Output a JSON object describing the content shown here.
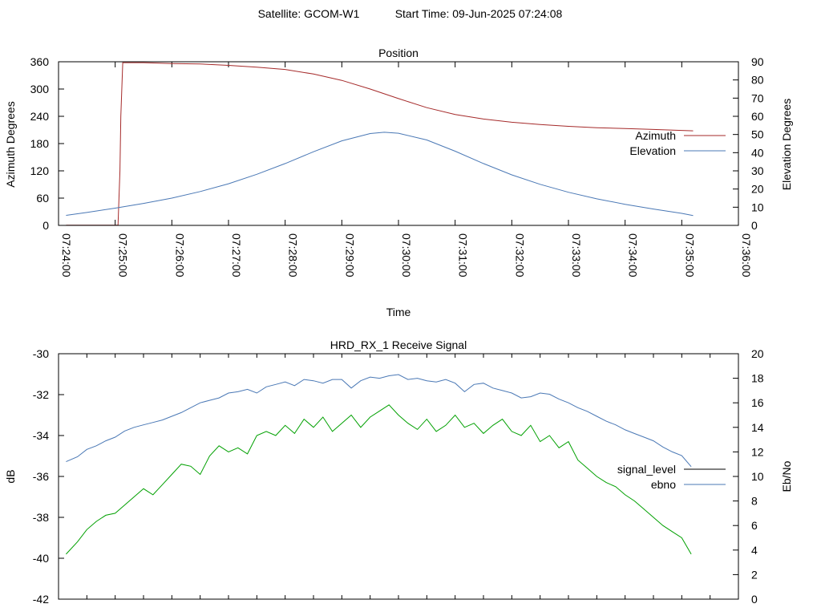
{
  "header": {
    "satellite_label": "Satellite: GCOM-W1",
    "start_time_label": "Start Time: 09-Jun-2025 07:24:08"
  },
  "chart_data": [
    {
      "type": "line",
      "title": "Position",
      "xlabel": "Time",
      "ylabel": "Azimuth Degrees",
      "y2label": "Elevation Degrees",
      "xlim": [
        "07:24:00",
        "07:36:00"
      ],
      "ylim": [
        0,
        360
      ],
      "y2lim": [
        0,
        90
      ],
      "x_ticks": [
        "07:24:00",
        "07:25:00",
        "07:26:00",
        "07:27:00",
        "07:28:00",
        "07:29:00",
        "07:30:00",
        "07:31:00",
        "07:32:00",
        "07:33:00",
        "07:34:00",
        "07:35:00",
        "07:36:00"
      ],
      "y_ticks": [
        0,
        60,
        120,
        180,
        240,
        300,
        360
      ],
      "y2_ticks": [
        0,
        10,
        20,
        30,
        40,
        50,
        60,
        70,
        80,
        90
      ],
      "grid": false,
      "legend": "right",
      "series": [
        {
          "name": "Azimuth",
          "axis": "y",
          "color": "#a52a2a",
          "points": [
            [
              "07:24:08",
              0.5
            ],
            [
              "07:24:30",
              0.5
            ],
            [
              "07:24:50",
              0.5
            ],
            [
              "07:25:03",
              0.5
            ],
            [
              "07:25:05",
              120
            ],
            [
              "07:25:06",
              240
            ],
            [
              "07:25:08",
              358
            ],
            [
              "07:25:30",
              358
            ],
            [
              "07:26:00",
              356
            ],
            [
              "07:26:30",
              355
            ],
            [
              "07:27:00",
              352
            ],
            [
              "07:27:30",
              348
            ],
            [
              "07:28:00",
              343
            ],
            [
              "07:28:30",
              333
            ],
            [
              "07:29:00",
              319
            ],
            [
              "07:29:30",
              300
            ],
            [
              "07:30:00",
              279
            ],
            [
              "07:30:30",
              259
            ],
            [
              "07:31:00",
              244
            ],
            [
              "07:31:30",
              234
            ],
            [
              "07:32:00",
              227
            ],
            [
              "07:32:30",
              222
            ],
            [
              "07:33:00",
              218
            ],
            [
              "07:33:30",
              215
            ],
            [
              "07:34:00",
              213
            ],
            [
              "07:34:30",
              211
            ],
            [
              "07:35:00",
              209
            ],
            [
              "07:35:12",
              208
            ]
          ]
        },
        {
          "name": "Elevation",
          "axis": "y2",
          "color": "#4a78b5",
          "points": [
            [
              "07:24:08",
              5.5
            ],
            [
              "07:24:30",
              7.1
            ],
            [
              "07:25:00",
              9.5
            ],
            [
              "07:25:30",
              12.1
            ],
            [
              "07:26:00",
              15.0
            ],
            [
              "07:26:30",
              18.6
            ],
            [
              "07:27:00",
              22.9
            ],
            [
              "07:27:30",
              28.1
            ],
            [
              "07:28:00",
              34.0
            ],
            [
              "07:28:30",
              40.5
            ],
            [
              "07:29:00",
              46.5
            ],
            [
              "07:29:30",
              50.5
            ],
            [
              "07:29:45",
              51.2
            ],
            [
              "07:30:00",
              50.7
            ],
            [
              "07:30:30",
              47.0
            ],
            [
              "07:31:00",
              40.8
            ],
            [
              "07:31:30",
              34.0
            ],
            [
              "07:32:00",
              27.8
            ],
            [
              "07:32:30",
              22.6
            ],
            [
              "07:33:00",
              18.2
            ],
            [
              "07:33:30",
              14.6
            ],
            [
              "07:34:00",
              11.6
            ],
            [
              "07:34:30",
              9.0
            ],
            [
              "07:35:00",
              6.6
            ],
            [
              "07:35:12",
              5.4
            ]
          ]
        }
      ]
    },
    {
      "type": "line",
      "title": "HRD_RX_1 Receive Signal",
      "xlabel": "",
      "ylabel": "dB",
      "y2label": "Eb/No",
      "xlim": [
        "07:24:00",
        "07:36:00"
      ],
      "ylim": [
        -42,
        -30
      ],
      "y2lim": [
        0,
        20
      ],
      "y_ticks": [
        -42,
        -40,
        -38,
        -36,
        -34,
        -32,
        -30
      ],
      "y2_ticks": [
        0,
        2,
        4,
        6,
        8,
        10,
        12,
        14,
        16,
        18,
        20
      ],
      "x_tick_labels_shown": false,
      "grid": false,
      "legend": "right",
      "series": [
        {
          "name": "signal_level",
          "axis": "y",
          "color": "#00a000",
          "legend_color": "#000000",
          "points": [
            [
              "07:24:08",
              -39.8
            ],
            [
              "07:24:20",
              -39.2
            ],
            [
              "07:24:30",
              -38.6
            ],
            [
              "07:24:40",
              -38.2
            ],
            [
              "07:24:50",
              -37.9
            ],
            [
              "07:25:00",
              -37.8
            ],
            [
              "07:25:10",
              -37.4
            ],
            [
              "07:25:20",
              -37.0
            ],
            [
              "07:25:30",
              -36.6
            ],
            [
              "07:25:40",
              -36.9
            ],
            [
              "07:25:50",
              -36.4
            ],
            [
              "07:26:00",
              -35.9
            ],
            [
              "07:26:10",
              -35.4
            ],
            [
              "07:26:20",
              -35.5
            ],
            [
              "07:26:30",
              -35.9
            ],
            [
              "07:26:40",
              -35.0
            ],
            [
              "07:26:50",
              -34.5
            ],
            [
              "07:27:00",
              -34.8
            ],
            [
              "07:27:10",
              -34.6
            ],
            [
              "07:27:20",
              -34.9
            ],
            [
              "07:27:30",
              -34.0
            ],
            [
              "07:27:40",
              -33.8
            ],
            [
              "07:27:50",
              -34.0
            ],
            [
              "07:28:00",
              -33.5
            ],
            [
              "07:28:10",
              -33.9
            ],
            [
              "07:28:20",
              -33.2
            ],
            [
              "07:28:30",
              -33.6
            ],
            [
              "07:28:40",
              -33.1
            ],
            [
              "07:28:50",
              -33.8
            ],
            [
              "07:29:00",
              -33.4
            ],
            [
              "07:29:10",
              -33.0
            ],
            [
              "07:29:20",
              -33.6
            ],
            [
              "07:29:30",
              -33.1
            ],
            [
              "07:29:40",
              -32.8
            ],
            [
              "07:29:50",
              -32.5
            ],
            [
              "07:30:00",
              -33.0
            ],
            [
              "07:30:10",
              -33.4
            ],
            [
              "07:30:20",
              -33.7
            ],
            [
              "07:30:30",
              -33.2
            ],
            [
              "07:30:40",
              -33.8
            ],
            [
              "07:30:50",
              -33.5
            ],
            [
              "07:31:00",
              -33.0
            ],
            [
              "07:31:10",
              -33.6
            ],
            [
              "07:31:20",
              -33.4
            ],
            [
              "07:31:30",
              -33.9
            ],
            [
              "07:31:40",
              -33.5
            ],
            [
              "07:31:50",
              -33.2
            ],
            [
              "07:32:00",
              -33.8
            ],
            [
              "07:32:10",
              -34.0
            ],
            [
              "07:32:20",
              -33.5
            ],
            [
              "07:32:30",
              -34.3
            ],
            [
              "07:32:40",
              -34.0
            ],
            [
              "07:32:50",
              -34.6
            ],
            [
              "07:33:00",
              -34.3
            ],
            [
              "07:33:10",
              -35.2
            ],
            [
              "07:33:20",
              -35.6
            ],
            [
              "07:33:30",
              -36.0
            ],
            [
              "07:33:40",
              -36.3
            ],
            [
              "07:33:50",
              -36.5
            ],
            [
              "07:34:00",
              -36.9
            ],
            [
              "07:34:10",
              -37.2
            ],
            [
              "07:34:20",
              -37.6
            ],
            [
              "07:34:30",
              -38.0
            ],
            [
              "07:34:40",
              -38.4
            ],
            [
              "07:34:50",
              -38.7
            ],
            [
              "07:35:00",
              -39.0
            ],
            [
              "07:35:10",
              -39.8
            ]
          ]
        },
        {
          "name": "ebno",
          "axis": "y2",
          "color": "#4a78b5",
          "points": [
            [
              "07:24:08",
              11.2
            ],
            [
              "07:24:20",
              11.6
            ],
            [
              "07:24:30",
              12.2
            ],
            [
              "07:24:40",
              12.5
            ],
            [
              "07:24:50",
              12.9
            ],
            [
              "07:25:00",
              13.2
            ],
            [
              "07:25:10",
              13.7
            ],
            [
              "07:25:20",
              14.0
            ],
            [
              "07:25:30",
              14.2
            ],
            [
              "07:25:40",
              14.4
            ],
            [
              "07:25:50",
              14.6
            ],
            [
              "07:26:00",
              14.9
            ],
            [
              "07:26:10",
              15.2
            ],
            [
              "07:26:20",
              15.6
            ],
            [
              "07:26:30",
              16.0
            ],
            [
              "07:26:40",
              16.2
            ],
            [
              "07:26:50",
              16.4
            ],
            [
              "07:27:00",
              16.8
            ],
            [
              "07:27:10",
              16.9
            ],
            [
              "07:27:20",
              17.1
            ],
            [
              "07:27:30",
              16.8
            ],
            [
              "07:27:40",
              17.3
            ],
            [
              "07:27:50",
              17.5
            ],
            [
              "07:28:00",
              17.7
            ],
            [
              "07:28:10",
              17.4
            ],
            [
              "07:28:20",
              17.9
            ],
            [
              "07:28:30",
              17.8
            ],
            [
              "07:28:40",
              17.6
            ],
            [
              "07:28:50",
              17.9
            ],
            [
              "07:29:00",
              17.9
            ],
            [
              "07:29:10",
              17.2
            ],
            [
              "07:29:20",
              17.8
            ],
            [
              "07:29:30",
              18.1
            ],
            [
              "07:29:40",
              18.0
            ],
            [
              "07:29:50",
              18.2
            ],
            [
              "07:30:00",
              18.3
            ],
            [
              "07:30:10",
              17.9
            ],
            [
              "07:30:20",
              18.0
            ],
            [
              "07:30:30",
              17.8
            ],
            [
              "07:30:40",
              17.7
            ],
            [
              "07:30:50",
              17.9
            ],
            [
              "07:31:00",
              17.6
            ],
            [
              "07:31:10",
              16.9
            ],
            [
              "07:31:20",
              17.5
            ],
            [
              "07:31:30",
              17.6
            ],
            [
              "07:31:40",
              17.2
            ],
            [
              "07:31:50",
              17.0
            ],
            [
              "07:32:00",
              16.8
            ],
            [
              "07:32:10",
              16.4
            ],
            [
              "07:32:20",
              16.5
            ],
            [
              "07:32:30",
              16.8
            ],
            [
              "07:32:40",
              16.7
            ],
            [
              "07:32:50",
              16.3
            ],
            [
              "07:33:00",
              16.0
            ],
            [
              "07:33:10",
              15.6
            ],
            [
              "07:33:20",
              15.3
            ],
            [
              "07:33:30",
              14.9
            ],
            [
              "07:33:40",
              14.5
            ],
            [
              "07:33:50",
              14.2
            ],
            [
              "07:34:00",
              13.8
            ],
            [
              "07:34:10",
              13.5
            ],
            [
              "07:34:20",
              13.2
            ],
            [
              "07:34:30",
              12.9
            ],
            [
              "07:34:40",
              12.4
            ],
            [
              "07:34:50",
              12.0
            ],
            [
              "07:35:00",
              11.7
            ],
            [
              "07:35:10",
              10.8
            ]
          ]
        }
      ]
    }
  ]
}
